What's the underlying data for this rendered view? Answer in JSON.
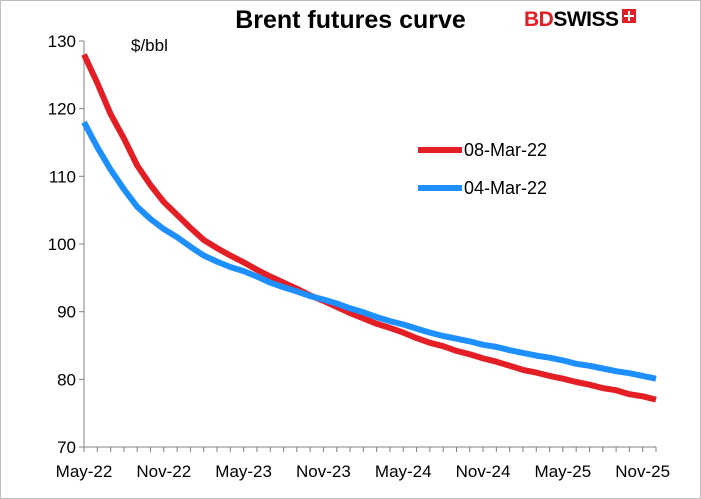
{
  "chart_data": {
    "type": "line",
    "title": "Brent futures curve",
    "ylabel": "$/bbl",
    "ylim": [
      70,
      130
    ],
    "yticks": [
      70,
      80,
      90,
      100,
      110,
      120,
      130
    ],
    "xlim": [
      "2022-05",
      "2025-12"
    ],
    "x_tick_labels": [
      "May-22",
      "Nov-22",
      "May-23",
      "Nov-23",
      "May-24",
      "Nov-24",
      "May-25",
      "Nov-25"
    ],
    "x_tick_values": [
      "2022-05",
      "2022-11",
      "2023-05",
      "2023-11",
      "2024-05",
      "2024-11",
      "2025-05",
      "2025-11"
    ],
    "legend_position": "right",
    "grid": false,
    "series": [
      {
        "name": "08-Mar-22",
        "color": "#e31e24",
        "x": [
          "2022-05",
          "2022-06",
          "2022-07",
          "2022-08",
          "2022-09",
          "2022-10",
          "2022-11",
          "2022-12",
          "2023-01",
          "2023-02",
          "2023-03",
          "2023-04",
          "2023-05",
          "2023-06",
          "2023-07",
          "2023-08",
          "2023-09",
          "2023-10",
          "2023-11",
          "2023-12",
          "2024-01",
          "2024-02",
          "2024-03",
          "2024-04",
          "2024-05",
          "2024-06",
          "2024-07",
          "2024-08",
          "2024-09",
          "2024-10",
          "2024-11",
          "2024-12",
          "2025-01",
          "2025-02",
          "2025-03",
          "2025-04",
          "2025-05",
          "2025-06",
          "2025-07",
          "2025-08",
          "2025-09",
          "2025-10",
          "2025-11",
          "2025-12"
        ],
        "values": [
          128.0,
          123.8,
          119.2,
          115.6,
          111.6,
          108.7,
          106.2,
          104.3,
          102.4,
          100.6,
          99.4,
          98.3,
          97.3,
          96.2,
          95.2,
          94.3,
          93.4,
          92.4,
          91.6,
          90.7,
          89.8,
          89.0,
          88.2,
          87.6,
          86.9,
          86.1,
          85.4,
          84.9,
          84.2,
          83.7,
          83.1,
          82.6,
          82.0,
          81.4,
          81.0,
          80.5,
          80.1,
          79.6,
          79.2,
          78.7,
          78.4,
          77.8,
          77.5,
          77.0
        ]
      },
      {
        "name": "04-Mar-22",
        "color": "#1e8fff",
        "x": [
          "2022-05",
          "2022-06",
          "2022-07",
          "2022-08",
          "2022-09",
          "2022-10",
          "2022-11",
          "2022-12",
          "2023-01",
          "2023-02",
          "2023-03",
          "2023-04",
          "2023-05",
          "2023-06",
          "2023-07",
          "2023-08",
          "2023-09",
          "2023-10",
          "2023-11",
          "2023-12",
          "2024-01",
          "2024-02",
          "2024-03",
          "2024-04",
          "2024-05",
          "2024-06",
          "2024-07",
          "2024-08",
          "2024-09",
          "2024-10",
          "2024-11",
          "2024-12",
          "2025-01",
          "2025-02",
          "2025-03",
          "2025-04",
          "2025-05",
          "2025-06",
          "2025-07",
          "2025-08",
          "2025-09",
          "2025-10",
          "2025-11",
          "2025-12"
        ],
        "values": [
          118.0,
          114.3,
          111.0,
          108.1,
          105.5,
          103.7,
          102.2,
          101.0,
          99.6,
          98.3,
          97.4,
          96.6,
          96.0,
          95.2,
          94.3,
          93.6,
          93.0,
          92.3,
          91.8,
          91.2,
          90.5,
          89.9,
          89.2,
          88.6,
          88.1,
          87.5,
          86.9,
          86.4,
          86.0,
          85.6,
          85.1,
          84.8,
          84.3,
          83.9,
          83.5,
          83.2,
          82.8,
          82.3,
          82.0,
          81.6,
          81.2,
          80.9,
          80.5,
          80.1
        ]
      }
    ]
  },
  "logo": {
    "part1": "BD",
    "part2": "SWISS"
  }
}
